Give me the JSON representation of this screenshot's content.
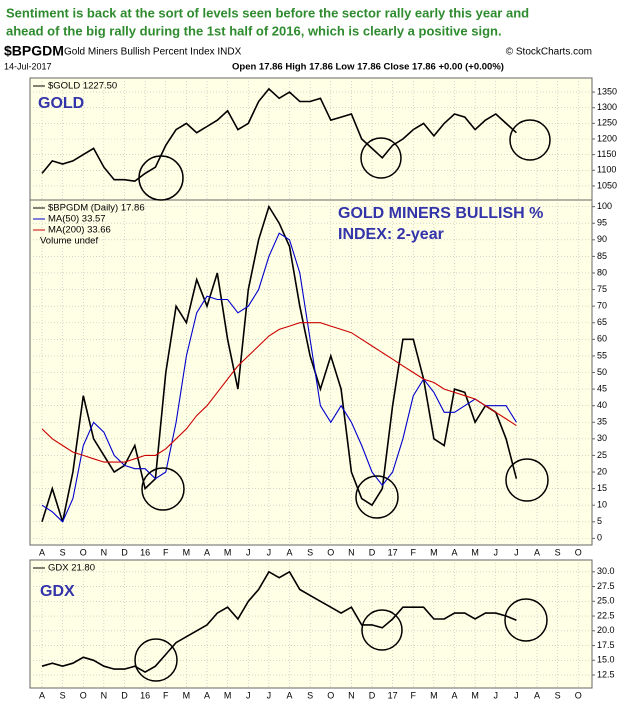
{
  "header": {
    "commentary": [
      "Sentiment is back at the sort of levels seen before the sector rally early this year and",
      "ahead of the big rally during the 1st half of 2016, which is clearly a positive sign."
    ],
    "symbol": "$BPGDM",
    "name": "Gold Miners Bullish Percent Index INDX",
    "source": "© StockCharts.com",
    "date": "14-Jul-2017",
    "quote": "Open 17.86  High 17.86  Low 17.86  Close 17.86  +0.00 (+0.00%)"
  },
  "chart_data": [
    {
      "type": "line",
      "annotation": [
        "GOLD"
      ],
      "ylim": [
        1005,
        1395
      ],
      "yticks": [
        1050,
        1100,
        1150,
        1200,
        1250,
        1300,
        1350
      ],
      "grid": true,
      "series": [
        {
          "name": "$GOLD 1227.50",
          "color": "#000000",
          "values": [
            1090,
            1130,
            1120,
            1130,
            1150,
            1170,
            1110,
            1070,
            1070,
            1065,
            1090,
            1110,
            1180,
            1230,
            1250,
            1220,
            1240,
            1260,
            1290,
            1230,
            1250,
            1320,
            1360,
            1330,
            1350,
            1320,
            1320,
            1330,
            1260,
            1270,
            1280,
            1200,
            1170,
            1140,
            1180,
            1200,
            1230,
            1250,
            1210,
            1250,
            1280,
            1270,
            1230,
            1260,
            1280,
            1250,
            1220,
            null,
            null,
            null,
            null,
            null,
            null,
            null
          ]
        }
      ]
    },
    {
      "type": "line",
      "annotation": [
        "GOLD MINERS BULLISH %",
        "INDEX: 2-year"
      ],
      "legend_note": "Volume undef",
      "categories": [
        "A",
        null,
        "S",
        null,
        "O",
        null,
        "N",
        null,
        "D",
        null,
        "16",
        null,
        "F",
        null,
        "M",
        null,
        "A",
        null,
        "M",
        null,
        "J",
        null,
        "J",
        null,
        "A",
        null,
        "S",
        null,
        "O",
        null,
        "N",
        null,
        "D",
        null,
        "17",
        null,
        "F",
        null,
        "M",
        null,
        "A",
        null,
        "M",
        null,
        "J",
        null,
        "J",
        null,
        "A",
        null,
        "S",
        null,
        "O",
        null
      ],
      "ylim": [
        -2,
        102
      ],
      "yticks": [
        0,
        5,
        10,
        15,
        20,
        25,
        30,
        35,
        40,
        45,
        50,
        55,
        60,
        65,
        70,
        75,
        80,
        85,
        90,
        95,
        100
      ],
      "grid": true,
      "series": [
        {
          "name": "$BPGDM (Daily) 17.86",
          "color": "#000000",
          "values": [
            5,
            15,
            5,
            20,
            43,
            30,
            25,
            20,
            22,
            28,
            15,
            18,
            50,
            70,
            65,
            78,
            70,
            80,
            60,
            45,
            75,
            90,
            100,
            95,
            88,
            70,
            55,
            45,
            55,
            45,
            20,
            12,
            10,
            15,
            40,
            60,
            60,
            48,
            30,
            28,
            45,
            44,
            35,
            40,
            38,
            30,
            18,
            null,
            null,
            null,
            null,
            null,
            null,
            null
          ]
        },
        {
          "name": "MA(50) 33.57",
          "color": "#0000cc",
          "values": [
            10,
            8,
            5,
            12,
            28,
            35,
            32,
            25,
            22,
            21,
            21,
            18,
            20,
            35,
            55,
            68,
            73,
            72,
            72,
            68,
            70,
            75,
            85,
            92,
            90,
            80,
            60,
            40,
            35,
            40,
            35,
            28,
            20,
            16,
            20,
            30,
            43,
            48,
            44,
            38,
            38,
            40,
            42,
            40,
            40,
            40,
            35,
            null,
            null,
            null,
            null,
            null,
            null,
            null
          ]
        },
        {
          "name": "MA(200) 33.66",
          "color": "#cc0000",
          "values": [
            33,
            30,
            28,
            26,
            25,
            24,
            23,
            23,
            23,
            24,
            25,
            25,
            27,
            30,
            33,
            37,
            40,
            44,
            48,
            52,
            55,
            58,
            61,
            63,
            64,
            65,
            65,
            65,
            64,
            63,
            62,
            60,
            58,
            56,
            54,
            52,
            50,
            48,
            47,
            45,
            44,
            43,
            42,
            40,
            38,
            36,
            34,
            null,
            null,
            null,
            null,
            null,
            null,
            null
          ]
        }
      ]
    },
    {
      "type": "line",
      "annotation": [
        "GDX"
      ],
      "categories": [
        "A",
        null,
        "S",
        null,
        "O",
        null,
        "N",
        null,
        "D",
        null,
        "16",
        null,
        "F",
        null,
        "M",
        null,
        "A",
        null,
        "M",
        null,
        "J",
        null,
        "J",
        null,
        "A",
        null,
        "S",
        null,
        "O",
        null,
        "N",
        null,
        "D",
        null,
        "17",
        null,
        "F",
        null,
        "M",
        null,
        "A",
        null,
        "M",
        null,
        "J",
        null,
        "J",
        null,
        "A",
        null,
        "S",
        null,
        "O",
        null
      ],
      "ylim": [
        10.3,
        32
      ],
      "yticks": [
        12.5,
        {
          "value": 15,
          "label": "15.0"
        },
        17.5,
        {
          "value": 20,
          "label": "20.0"
        },
        22.5,
        {
          "value": 25,
          "label": "25.0"
        },
        27.5,
        {
          "value": 30,
          "label": "30.0"
        }
      ],
      "grid": true,
      "series": [
        {
          "name": "GDX 21.80",
          "color": "#000000",
          "values": [
            14,
            14.5,
            14,
            14.5,
            15.5,
            15,
            14,
            13.5,
            13.5,
            14,
            13,
            14,
            16,
            18,
            19,
            20,
            21,
            23,
            24,
            22,
            25,
            27,
            30,
            29,
            30,
            27,
            26,
            25,
            24,
            23,
            24,
            21,
            21,
            20.5,
            22,
            24,
            24,
            24,
            22,
            22,
            23,
            23,
            22,
            23,
            23,
            22.5,
            21.8,
            null,
            null,
            null,
            null,
            null,
            null,
            null
          ]
        }
      ]
    }
  ]
}
